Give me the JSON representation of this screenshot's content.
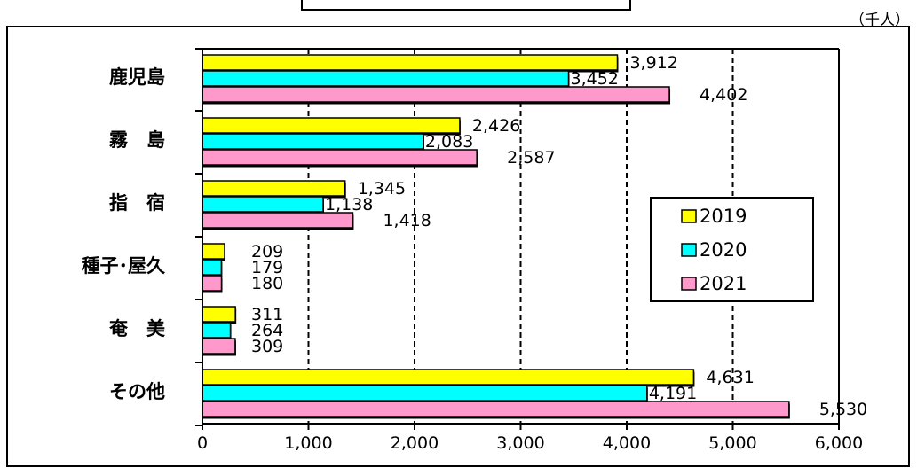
{
  "unit_label": "（千人）",
  "chart_data": {
    "type": "bar",
    "orientation": "horizontal",
    "categories": [
      "鹿児島",
      "霧　島",
      "指　宿",
      "種子･屋久",
      "奄　美",
      "その他"
    ],
    "series": [
      {
        "name": "2019",
        "color": "#ffff00",
        "values": [
          3912,
          2426,
          1345,
          209,
          311,
          4631
        ]
      },
      {
        "name": "2020",
        "color": "#00ffff",
        "values": [
          3452,
          2083,
          1138,
          179,
          264,
          4191
        ]
      },
      {
        "name": "2021",
        "color": "#ff99cc",
        "values": [
          4402,
          2587,
          1418,
          180,
          309,
          5530
        ]
      }
    ],
    "value_labels": [
      [
        "3,912",
        "2,426",
        "1,345",
        "209",
        "311",
        "4,631"
      ],
      [
        "3,452",
        "2,083",
        "1,138",
        "179",
        "264",
        "4,191"
      ],
      [
        "4,402",
        "2,587",
        "1,418",
        "180",
        "309",
        "5,530"
      ]
    ],
    "xlim": [
      0,
      6000
    ],
    "xticks": [
      0,
      1000,
      2000,
      3000,
      4000,
      5000,
      6000
    ],
    "xtick_labels": [
      "0",
      "1,000",
      "2,000",
      "3,000",
      "4,000",
      "5,000",
      "6,000"
    ],
    "grid": "vertical-dashed",
    "legend_position": "right"
  }
}
